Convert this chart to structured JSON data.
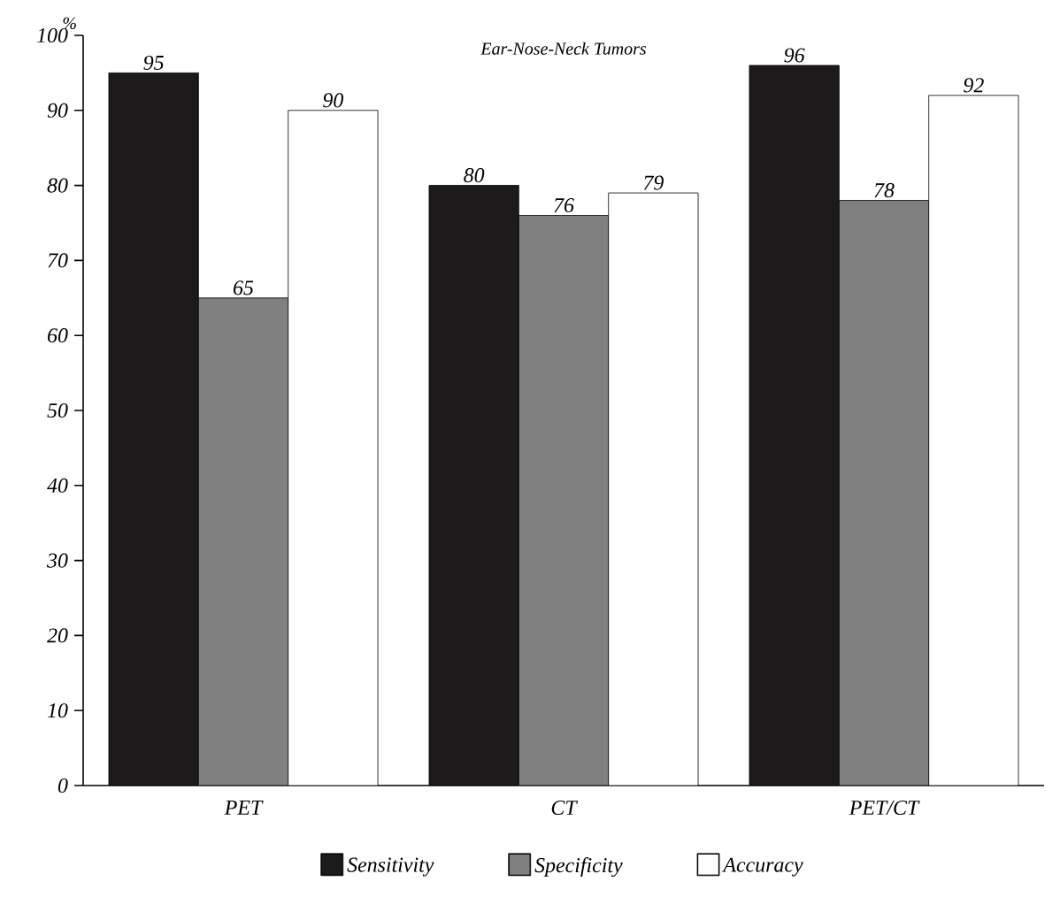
{
  "chart_data": {
    "type": "bar",
    "title": "Ear-Nose-Neck Tumors",
    "ylabel": "%",
    "categories": [
      "PET",
      "CT",
      "PET/CT"
    ],
    "series": [
      {
        "name": "Sensitivity",
        "color": "#1c1a1b",
        "values": [
          95,
          80,
          96
        ]
      },
      {
        "name": "Specificity",
        "color": "#808080",
        "values": [
          65,
          76,
          78
        ]
      },
      {
        "name": "Accuracy",
        "color": "#ffffff",
        "values": [
          90,
          79,
          92
        ]
      }
    ],
    "ylim": [
      0,
      100
    ],
    "yticks": [
      0,
      10,
      20,
      30,
      40,
      50,
      60,
      70,
      80,
      90,
      100
    ],
    "data_labels": true,
    "legend": "bottom",
    "grid": false
  }
}
